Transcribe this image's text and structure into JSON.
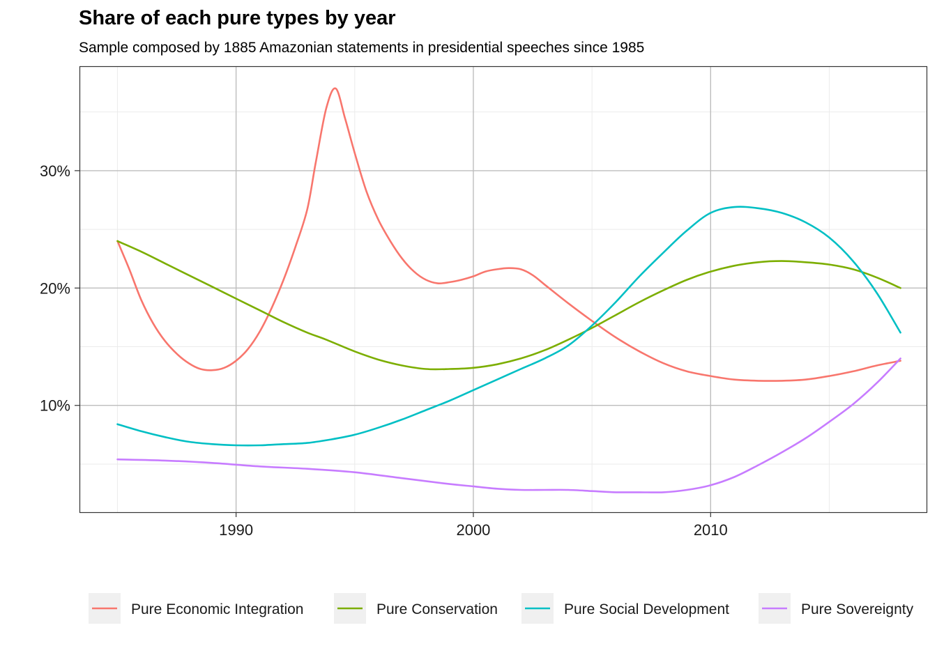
{
  "chart_data": {
    "type": "line",
    "title": "Share of each pure types by year",
    "subtitle": "Sample composed by 1885 Amazonian statements in presidential speeches since 1985",
    "xlabel": "",
    "ylabel": "",
    "xlim": [
      1983.4,
      2019.1
    ],
    "ylim": [
      0.009,
      0.389
    ],
    "x_ticks": [
      {
        "value": 1990,
        "label": "1990"
      },
      {
        "value": 2000,
        "label": "2000"
      },
      {
        "value": 2010,
        "label": "2010"
      }
    ],
    "y_ticks": [
      {
        "value": 0.1,
        "label": "10%"
      },
      {
        "value": 0.2,
        "label": "20%"
      },
      {
        "value": 0.3,
        "label": "30%"
      }
    ],
    "grid": true,
    "legend_position": "bottom",
    "series": [
      {
        "name": "Pure Economic Integration",
        "color": "#F8766D",
        "x": [
          1985,
          1985.5,
          1986,
          1986.5,
          1987,
          1987.5,
          1988,
          1988.5,
          1989,
          1989.5,
          1990,
          1990.5,
          1991,
          1991.5,
          1992,
          1992.5,
          1993,
          1993.35,
          1993.8,
          1994.2,
          1994.6,
          1995,
          1995.5,
          1996,
          1996.5,
          1997,
          1997.5,
          1998,
          1998.5,
          1999,
          1999.5,
          2000,
          2000.5,
          2001,
          2001.5,
          2002,
          2002.5,
          2003,
          2004,
          2005,
          2006,
          2007,
          2008,
          2009,
          2010,
          2011,
          2012,
          2013,
          2014,
          2015,
          2016,
          2017,
          2018
        ],
        "y": [
          0.24,
          0.216,
          0.19,
          0.17,
          0.155,
          0.144,
          0.136,
          0.131,
          0.13,
          0.132,
          0.138,
          0.148,
          0.163,
          0.183,
          0.207,
          0.235,
          0.267,
          0.306,
          0.353,
          0.37,
          0.344,
          0.315,
          0.282,
          0.258,
          0.24,
          0.225,
          0.214,
          0.207,
          0.204,
          0.205,
          0.207,
          0.21,
          0.214,
          0.216,
          0.217,
          0.216,
          0.211,
          0.203,
          0.187,
          0.172,
          0.158,
          0.146,
          0.136,
          0.129,
          0.125,
          0.122,
          0.121,
          0.121,
          0.122,
          0.125,
          0.129,
          0.134,
          0.138
        ]
      },
      {
        "name": "Pure Conservation",
        "color": "#7CAE00",
        "x": [
          1985,
          1986,
          1987,
          1988,
          1989,
          1990,
          1991,
          1992,
          1993,
          1993.8,
          1995,
          1996,
          1997,
          1998,
          1999,
          2000,
          2001,
          2002,
          2003,
          2004,
          2005,
          2006,
          2007,
          2008,
          2009,
          2010,
          2011,
          2012,
          2013,
          2014,
          2015,
          2016,
          2017,
          2018
        ],
        "y": [
          0.24,
          0.231,
          0.221,
          0.211,
          0.201,
          0.191,
          0.181,
          0.171,
          0.162,
          0.156,
          0.146,
          0.139,
          0.134,
          0.131,
          0.131,
          0.132,
          0.135,
          0.14,
          0.147,
          0.156,
          0.166,
          0.177,
          0.188,
          0.198,
          0.207,
          0.214,
          0.219,
          0.222,
          0.223,
          0.222,
          0.22,
          0.216,
          0.209,
          0.2
        ]
      },
      {
        "name": "Pure Social Development",
        "color": "#00BFC4",
        "x": [
          1985,
          1986,
          1987,
          1988,
          1989,
          1990,
          1991,
          1992,
          1993,
          1994,
          1995,
          1996,
          1997,
          1998,
          1999,
          2000,
          2001,
          2002,
          2003,
          2004,
          2005,
          2006,
          2007,
          2008,
          2009,
          2010,
          2011,
          2012,
          2013,
          2014,
          2015,
          2016,
          2017,
          2018
        ],
        "y": [
          0.084,
          0.078,
          0.073,
          0.069,
          0.067,
          0.066,
          0.066,
          0.067,
          0.068,
          0.071,
          0.075,
          0.081,
          0.088,
          0.096,
          0.104,
          0.113,
          0.122,
          0.131,
          0.14,
          0.151,
          0.168,
          0.188,
          0.21,
          0.23,
          0.249,
          0.264,
          0.269,
          0.268,
          0.264,
          0.256,
          0.243,
          0.223,
          0.196,
          0.162
        ]
      },
      {
        "name": "Pure Sovereignty",
        "color": "#C77CFF",
        "x": [
          1985,
          1987,
          1989,
          1991,
          1993,
          1995,
          1997,
          1999,
          2000,
          2001,
          2002,
          2003,
          2004,
          2005,
          2006,
          2007,
          2008,
          2009,
          2010,
          2011,
          2012,
          2013,
          2014,
          2015,
          2016,
          2017,
          2018
        ],
        "y": [
          0.054,
          0.053,
          0.051,
          0.048,
          0.046,
          0.043,
          0.038,
          0.033,
          0.031,
          0.029,
          0.028,
          0.028,
          0.028,
          0.027,
          0.026,
          0.026,
          0.026,
          0.028,
          0.032,
          0.039,
          0.049,
          0.06,
          0.072,
          0.086,
          0.101,
          0.119,
          0.14
        ]
      }
    ]
  }
}
